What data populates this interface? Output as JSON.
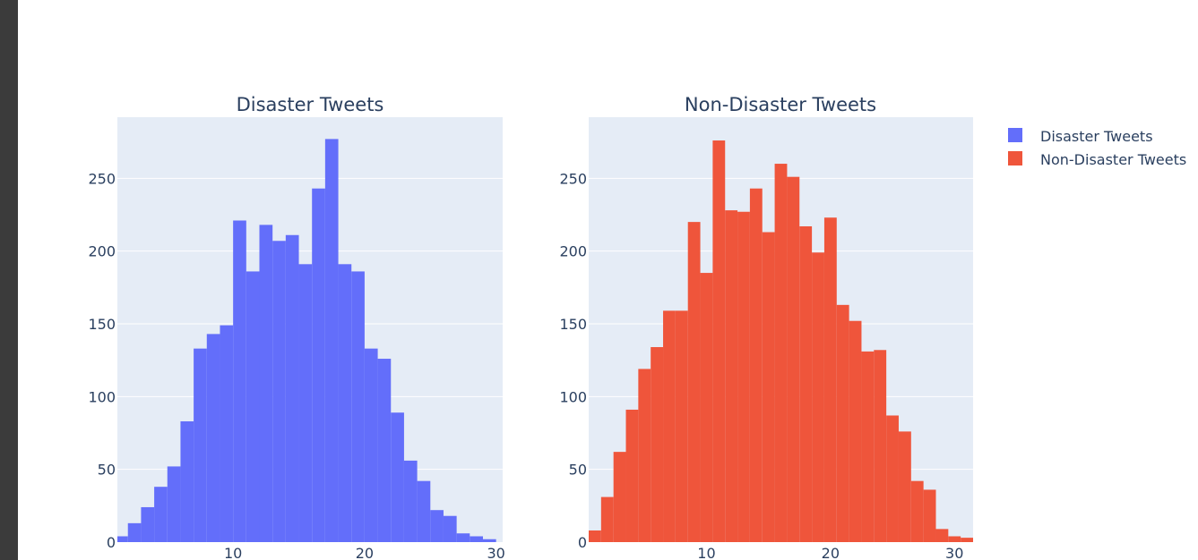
{
  "chart_data": [
    {
      "type": "bar",
      "title": "Disaster Tweets",
      "color": "#636efa",
      "bins": [
        [
          1,
          2,
          4
        ],
        [
          2,
          3,
          13
        ],
        [
          3,
          4,
          24
        ],
        [
          4,
          5,
          38
        ],
        [
          5,
          6,
          52
        ],
        [
          6,
          7,
          83
        ],
        [
          7,
          8,
          133
        ],
        [
          8,
          9,
          143
        ],
        [
          9,
          10,
          149
        ],
        [
          10,
          11,
          221
        ],
        [
          11,
          12,
          186
        ],
        [
          12,
          13,
          218
        ],
        [
          13,
          14,
          207
        ],
        [
          14,
          15,
          211
        ],
        [
          15,
          16,
          191
        ],
        [
          16,
          17,
          243
        ],
        [
          17,
          18,
          277
        ],
        [
          18,
          19,
          191
        ],
        [
          19,
          20,
          186
        ],
        [
          20,
          21,
          133
        ],
        [
          21,
          22,
          126
        ],
        [
          22,
          23,
          89
        ],
        [
          23,
          24,
          56
        ],
        [
          24,
          25,
          42
        ],
        [
          25,
          26,
          22
        ],
        [
          26,
          27,
          18
        ],
        [
          27,
          28,
          6
        ],
        [
          28,
          29,
          4
        ],
        [
          29,
          30,
          2
        ]
      ],
      "xlim": [
        1.2,
        30.5
      ],
      "ylim": [
        0,
        292
      ],
      "xticks": [
        10,
        20,
        30
      ],
      "yticks": [
        0,
        50,
        100,
        150,
        200,
        250
      ],
      "grid": true
    },
    {
      "type": "bar",
      "title": "Non-Disaster Tweets",
      "color": "#ef553b",
      "bins": [
        [
          0.5,
          1.5,
          8
        ],
        [
          1.5,
          2.5,
          31
        ],
        [
          2.5,
          3.5,
          62
        ],
        [
          3.5,
          4.5,
          91
        ],
        [
          4.5,
          5.5,
          119
        ],
        [
          5.5,
          6.5,
          134
        ],
        [
          6.5,
          7.5,
          159
        ],
        [
          7.5,
          8.5,
          159
        ],
        [
          8.5,
          9.5,
          220
        ],
        [
          9.5,
          10.5,
          185
        ],
        [
          10.5,
          11.5,
          276
        ],
        [
          11.5,
          12.5,
          228
        ],
        [
          12.5,
          13.5,
          227
        ],
        [
          13.5,
          14.5,
          243
        ],
        [
          14.5,
          15.5,
          213
        ],
        [
          15.5,
          16.5,
          260
        ],
        [
          16.5,
          17.5,
          251
        ],
        [
          17.5,
          18.5,
          217
        ],
        [
          18.5,
          19.5,
          199
        ],
        [
          19.5,
          20.5,
          223
        ],
        [
          20.5,
          21.5,
          163
        ],
        [
          21.5,
          22.5,
          152
        ],
        [
          22.5,
          23.5,
          131
        ],
        [
          23.5,
          24.5,
          132
        ],
        [
          24.5,
          25.5,
          87
        ],
        [
          25.5,
          26.5,
          76
        ],
        [
          26.5,
          27.5,
          42
        ],
        [
          27.5,
          28.5,
          36
        ],
        [
          28.5,
          29.5,
          9
        ],
        [
          29.5,
          30.5,
          4
        ],
        [
          30.5,
          31.5,
          3
        ]
      ],
      "xlim": [
        0.5,
        31.5
      ],
      "ylim": [
        0,
        292
      ],
      "xticks": [
        10,
        20,
        30
      ],
      "yticks": [
        0,
        50,
        100,
        150,
        200,
        250
      ],
      "grid": true
    }
  ],
  "legend": {
    "placement": "top-right",
    "items": [
      {
        "label": "Disaster Tweets",
        "color": "#636efa"
      },
      {
        "label": "Non-Disaster Tweets",
        "color": "#ef553b"
      }
    ]
  },
  "colors": {
    "plot_background": "#e5ecf6",
    "gridline": "#ffffff",
    "text": "#2a3f5f"
  }
}
